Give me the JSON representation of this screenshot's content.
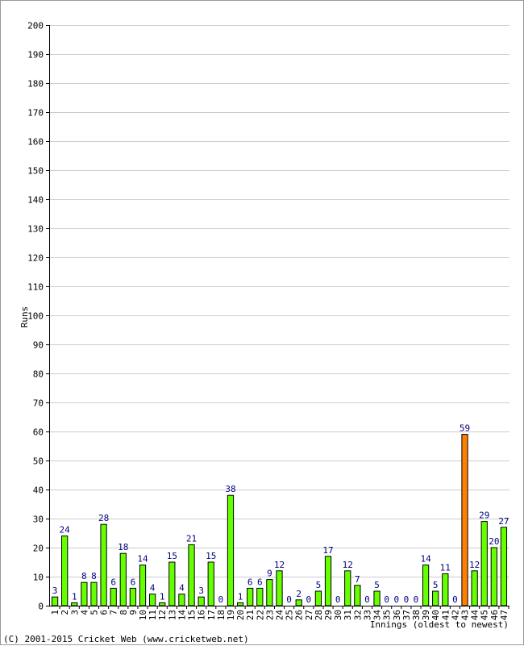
{
  "chart_data": {
    "type": "bar",
    "xlabel": "Innings (oldest to newest)",
    "ylabel": "Runs",
    "ylim": [
      0,
      200
    ],
    "ytick_step": 10,
    "categories": [
      "1",
      "2",
      "3",
      "4",
      "5",
      "6",
      "7",
      "8",
      "9",
      "10",
      "11",
      "12",
      "13",
      "14",
      "15",
      "16",
      "17",
      "18",
      "19",
      "20",
      "21",
      "22",
      "23",
      "24",
      "25",
      "26",
      "27",
      "28",
      "29",
      "30",
      "31",
      "32",
      "33",
      "34",
      "35",
      "36",
      "37",
      "38",
      "39",
      "40",
      "41",
      "42",
      "43",
      "44",
      "45",
      "46",
      "47"
    ],
    "values": [
      3,
      24,
      1,
      8,
      8,
      28,
      6,
      18,
      6,
      14,
      4,
      1,
      15,
      4,
      21,
      3,
      15,
      0,
      38,
      1,
      6,
      6,
      9,
      12,
      0,
      2,
      0,
      5,
      17,
      0,
      12,
      7,
      0,
      5,
      0,
      0,
      0,
      0,
      14,
      5,
      11,
      0,
      59,
      12,
      29,
      20,
      27
    ],
    "highlight_index": 42,
    "grid": true,
    "colors": {
      "bar": "#66ff00",
      "highlight_bar": "#ff8000",
      "value_label": "#000080",
      "grid": "#cccccc",
      "axis": "#000000"
    }
  },
  "footer": "(C) 2001-2015 Cricket Web (www.cricketweb.net)"
}
